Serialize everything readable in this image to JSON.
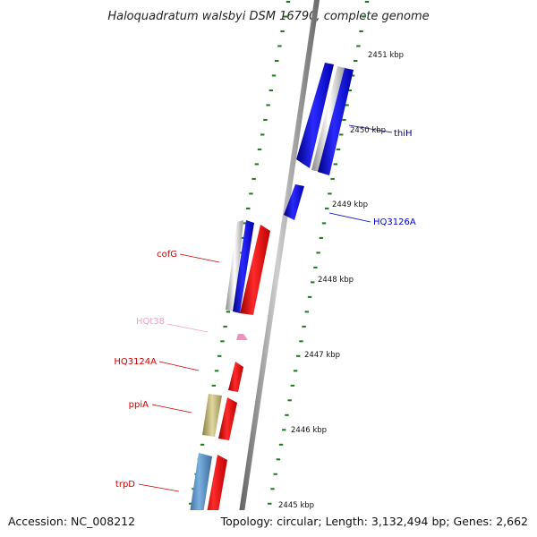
{
  "title": "Haloquadratum walsbyi DSM 16790, complete genome",
  "footer": {
    "accession": "Accession: NC_008212",
    "topology": "Topology: circular; Length: 3,132,494 bp; Genes: 2,662"
  },
  "ruler": {
    "labels": [
      "2451 kbp",
      "2450 kbp",
      "2449 kbp",
      "2448 kbp",
      "2447 kbp",
      "2446 kbp",
      "2445 kbp"
    ]
  },
  "genes": [
    {
      "name": "thiH",
      "color": "#000080"
    },
    {
      "name": "HQ3126A",
      "color": "#0000cc"
    },
    {
      "name": "cofG",
      "color": "#cc0000"
    },
    {
      "name": "HQt38",
      "color": "#f4a0c8"
    },
    {
      "name": "HQ3124A",
      "color": "#cc0000"
    },
    {
      "name": "ppiA",
      "color": "#cc0000"
    },
    {
      "name": "trpD",
      "color": "#cc0000"
    }
  ],
  "colors": {
    "backbone": "#8a8a8a",
    "tick": "#1a7a1a",
    "blue_feature": "#0000ee",
    "red_feature": "#ee0000",
    "pink_feature": "#f090c0",
    "olive_feature": "#b5a96a",
    "steel_feature": "#4682b4",
    "grey_feature": "#cccccc"
  }
}
